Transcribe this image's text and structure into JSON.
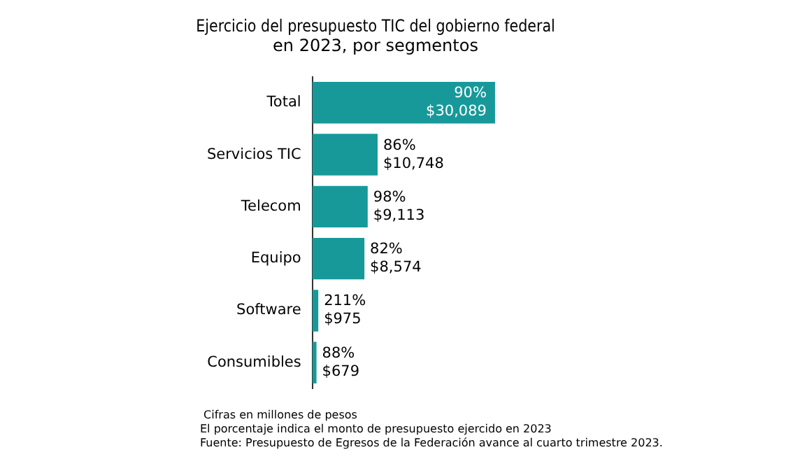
{
  "chart_data": {
    "type": "bar",
    "orientation": "horizontal",
    "title": "Ejercicio del presupuesto TIC del gobierno federal\nen 2023, por segmentos",
    "categories": [
      "Total",
      "Servicios TIC",
      "Telecom",
      "Equipo",
      "Software",
      "Consumibles"
    ],
    "values": [
      30089,
      10748,
      9113,
      8574,
      975,
      679
    ],
    "color": "#17999a",
    "value_labels": [
      "90%\n$30,089",
      "86%\n$10,748",
      "98%\n$9,113",
      "82%\n$8,574",
      "211%\n$975",
      "88%\n$679"
    ],
    "tick_labels": "y",
    "grid": false,
    "legend": false,
    "annotations": [
      " Cifras en millones de pesos",
      "El porcentaje indica el monto de presupuesto ejercido en 2023",
      "Fuente: Presupuesto de Egresos de la Federación avance al cuarto trimestre 2023."
    ]
  }
}
